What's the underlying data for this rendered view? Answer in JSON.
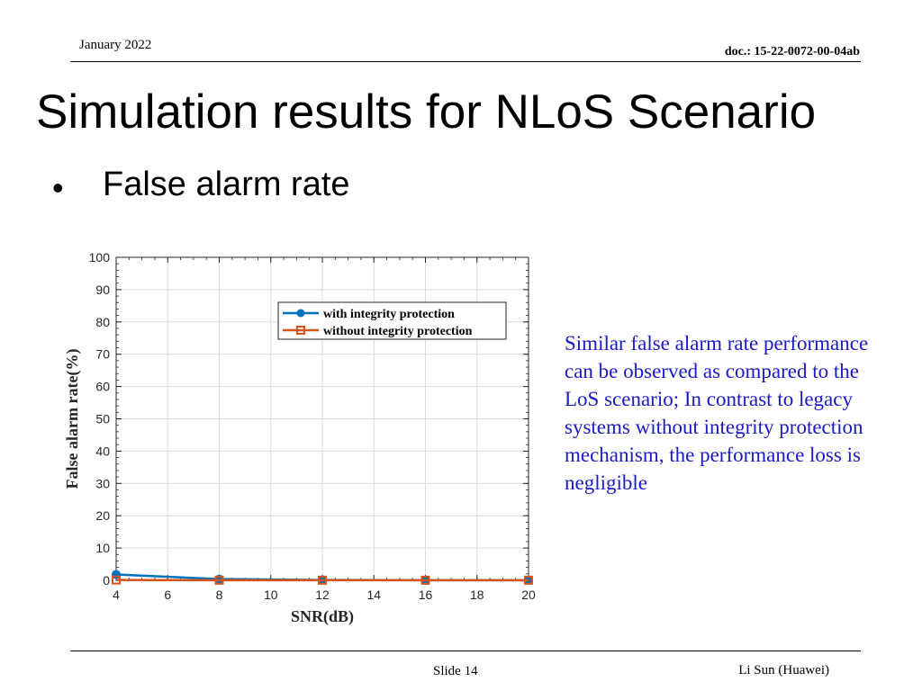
{
  "header": {
    "date": "January 2022",
    "doc": "doc.: 15-22-0072-00-04ab"
  },
  "title": "Simulation results for NLoS Scenario",
  "bullet": {
    "marker": "•",
    "text": "False alarm rate"
  },
  "note": "Similar false alarm rate performance can be observed as compared to the LoS scenario; In contrast to legacy systems without integrity protection mechanism, the performance loss is negligible",
  "footer": {
    "slide": "Slide 14",
    "author": "Li Sun (Huawei)"
  },
  "colors": {
    "series_with": "#0072bd",
    "series_without": "#d95319",
    "note_text": "#1a1ac8"
  },
  "chart_data": {
    "type": "line",
    "xlabel": "SNR(dB)",
    "ylabel": "False alarm rate(%)",
    "xlim": [
      4,
      20
    ],
    "ylim": [
      0,
      100
    ],
    "xticks": [
      4,
      6,
      8,
      10,
      12,
      14,
      16,
      18,
      20
    ],
    "yticks": [
      0,
      10,
      20,
      30,
      40,
      50,
      60,
      70,
      80,
      90,
      100
    ],
    "x": [
      4,
      8,
      12,
      16,
      20
    ],
    "grid": true,
    "legend_position": "top-right",
    "series": [
      {
        "name": "with integrity protection",
        "marker": "circle",
        "values": [
          1.8,
          0.4,
          0.1,
          0.05,
          0.05
        ]
      },
      {
        "name": "without integrity protection",
        "marker": "square",
        "values": [
          0.1,
          0.05,
          0.05,
          0.05,
          0.05
        ]
      }
    ]
  }
}
